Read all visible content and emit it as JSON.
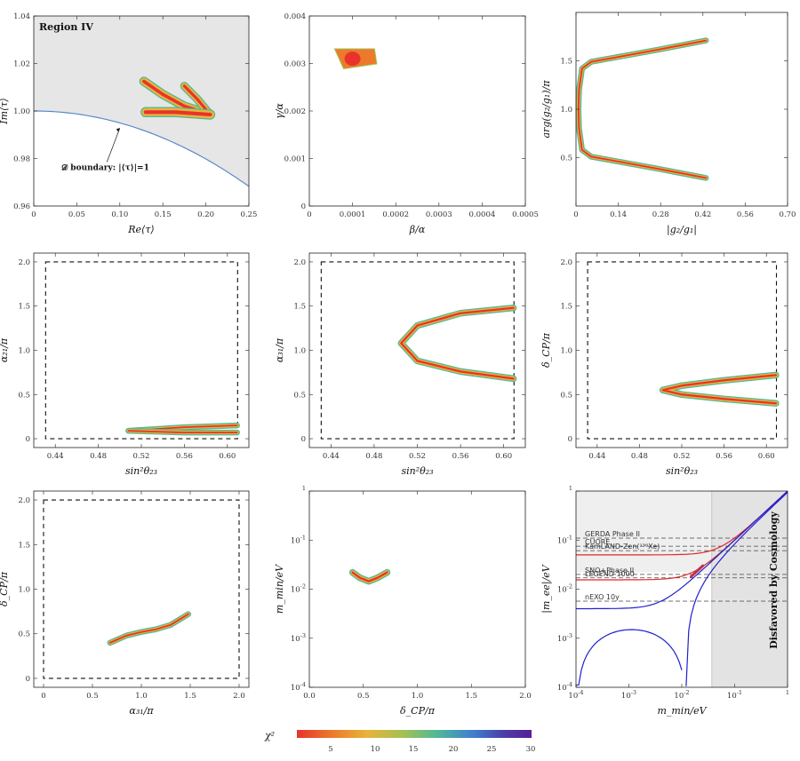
{
  "colorbar": {
    "label": "χ²",
    "ticks": [
      "5",
      "10",
      "15",
      "20",
      "25",
      "30"
    ],
    "range": [
      0,
      30
    ],
    "colors": [
      "#e8332c",
      "#ec7a2a",
      "#e8b43a",
      "#a4c152",
      "#4fb89a",
      "#3f7fd0",
      "#4a3fa8",
      "#5a1f96"
    ]
  },
  "chart_data": [
    {
      "id": "p1",
      "type": "scatter",
      "title": "Region IV",
      "xlabel": "Re⟨τ⟩",
      "ylabel": "Im⟨τ⟩",
      "xlim": [
        0,
        0.25
      ],
      "ylim": [
        0.96,
        1.04
      ],
      "xticks": [
        "0",
        "0.05",
        "0.10",
        "0.15",
        "0.20",
        "0.25"
      ],
      "yticks": [
        "0.96",
        "0.98",
        "1.00",
        "1.02",
        "1.04"
      ],
      "shaded_region": "above |τ|=1 boundary (gray)",
      "annotation": "𝒟 boundary: |⟨τ⟩|=1",
      "boundary_curve": {
        "eq": "y = sqrt(1 - x^2)",
        "x_range": [
          0,
          0.25
        ]
      },
      "region": [
        {
          "x": 0.13,
          "y": 1.0125
        },
        {
          "x": 0.16,
          "y": 1.004
        },
        {
          "x": 0.19,
          "y": 1.0
        },
        {
          "x": 0.21,
          "y": 0.998
        },
        {
          "x": 0.21,
          "y": 0.9985
        },
        {
          "x": 0.19,
          "y": 1.011
        },
        {
          "x": 0.17,
          "y": 1.0115
        }
      ],
      "lower_branch": {
        "x_range": [
          0.13,
          0.21
        ],
        "y": 0.9995
      }
    },
    {
      "id": "p2",
      "type": "scatter",
      "xlabel": "β/α",
      "ylabel": "γ/α",
      "xlim": [
        0,
        0.0005
      ],
      "ylim": [
        0,
        0.004
      ],
      "xticks": [
        "0",
        "0.0001",
        "0.0002",
        "0.0003",
        "0.0004",
        "0.0005"
      ],
      "yticks": [
        "0",
        "0.001",
        "0.002",
        "0.003",
        "0.004"
      ],
      "blob": {
        "x_range": [
          6e-05,
          0.00015
        ],
        "y_range": [
          0.0029,
          0.0033
        ]
      }
    },
    {
      "id": "p3",
      "type": "scatter",
      "xlabel": "|g₂/g₁|",
      "ylabel": "arg(g₂/g₁)/π",
      "xlim": [
        0,
        0.7
      ],
      "ylim": [
        0,
        2
      ],
      "xticks": [
        "0",
        "0.14",
        "0.28",
        "0.42",
        "0.56",
        "0.70"
      ],
      "yticks": [
        "0.5",
        "1.0",
        "1.5"
      ],
      "curve": [
        {
          "x": 0.43,
          "y": 1.71
        },
        {
          "x": 0.28,
          "y": 1.62
        },
        {
          "x": 0.14,
          "y": 1.54
        },
        {
          "x": 0.05,
          "y": 1.49
        },
        {
          "x": 0.02,
          "y": 1.42
        },
        {
          "x": 0.01,
          "y": 1.2
        },
        {
          "x": 0.008,
          "y": 1.0
        },
        {
          "x": 0.01,
          "y": 0.8
        },
        {
          "x": 0.02,
          "y": 0.58
        },
        {
          "x": 0.05,
          "y": 0.51
        },
        {
          "x": 0.14,
          "y": 0.46
        },
        {
          "x": 0.28,
          "y": 0.38
        },
        {
          "x": 0.43,
          "y": 0.29
        }
      ]
    },
    {
      "id": "p4",
      "type": "scatter",
      "xlabel": "sin²θ₂₃",
      "ylabel": "α₂₁/π",
      "xlim": [
        0.42,
        0.62
      ],
      "ylim": [
        -0.1,
        2.1
      ],
      "xticks": [
        "0.44",
        "0.48",
        "0.52",
        "0.56",
        "0.60"
      ],
      "yticks": [
        "0",
        "0.5",
        "1.0",
        "1.5",
        "2.0"
      ],
      "dashed_box": {
        "x": [
          0.431,
          0.6095
        ],
        "y": [
          0,
          2
        ]
      },
      "loop_upper": [
        {
          "x": 0.508,
          "y": 0.09
        },
        {
          "x": 0.56,
          "y": 0.13
        },
        {
          "x": 0.609,
          "y": 0.15
        }
      ],
      "loop_lower": [
        {
          "x": 0.508,
          "y": 0.09
        },
        {
          "x": 0.56,
          "y": 0.07
        },
        {
          "x": 0.609,
          "y": 0.07
        }
      ]
    },
    {
      "id": "p5",
      "type": "scatter",
      "xlabel": "sin²θ₂₃",
      "ylabel": "α₃₁/π",
      "xlim": [
        0.42,
        0.62
      ],
      "ylim": [
        -0.1,
        2.1
      ],
      "xticks": [
        "0.44",
        "0.48",
        "0.52",
        "0.56",
        "0.60"
      ],
      "yticks": [
        "0",
        "0.5",
        "1.0",
        "1.5",
        "2.0"
      ],
      "dashed_box": {
        "x": [
          0.431,
          0.6095
        ],
        "y": [
          0,
          2
        ]
      },
      "curve": [
        {
          "x": 0.609,
          "y": 1.48
        },
        {
          "x": 0.56,
          "y": 1.42
        },
        {
          "x": 0.52,
          "y": 1.28
        },
        {
          "x": 0.505,
          "y": 1.08
        },
        {
          "x": 0.52,
          "y": 0.88
        },
        {
          "x": 0.56,
          "y": 0.76
        },
        {
          "x": 0.609,
          "y": 0.68
        }
      ]
    },
    {
      "id": "p6",
      "type": "scatter",
      "xlabel": "sin²θ₂₃",
      "ylabel": "δ_CP/π",
      "xlim": [
        0.42,
        0.62
      ],
      "ylim": [
        -0.1,
        2.1
      ],
      "xticks": [
        "0.44",
        "0.48",
        "0.52",
        "0.56",
        "0.60"
      ],
      "yticks": [
        "0",
        "0.5",
        "1.0",
        "1.5",
        "2.0"
      ],
      "dashed_box": {
        "x": [
          0.431,
          0.6095
        ],
        "y": [
          0,
          2
        ]
      },
      "curve": [
        {
          "x": 0.609,
          "y": 0.72
        },
        {
          "x": 0.56,
          "y": 0.66
        },
        {
          "x": 0.52,
          "y": 0.6
        },
        {
          "x": 0.502,
          "y": 0.55
        },
        {
          "x": 0.52,
          "y": 0.5
        },
        {
          "x": 0.56,
          "y": 0.45
        },
        {
          "x": 0.609,
          "y": 0.4
        }
      ]
    },
    {
      "id": "p7",
      "type": "scatter",
      "xlabel": "α₃₁/π",
      "ylabel": "δ_CP/π",
      "xlim": [
        -0.1,
        2.1
      ],
      "ylim": [
        -0.1,
        2.1
      ],
      "xticks": [
        "0",
        "0.5",
        "1.0",
        "1.5",
        "2.0"
      ],
      "yticks": [
        "0",
        "0.5",
        "1.0",
        "1.5",
        "2.0"
      ],
      "dashed_box": {
        "x": [
          0,
          2
        ],
        "y": [
          0,
          2
        ]
      },
      "curve": [
        {
          "x": 0.68,
          "y": 0.4
        },
        {
          "x": 0.85,
          "y": 0.48
        },
        {
          "x": 1.0,
          "y": 0.52
        },
        {
          "x": 1.15,
          "y": 0.55
        },
        {
          "x": 1.3,
          "y": 0.6
        },
        {
          "x": 1.48,
          "y": 0.72
        }
      ]
    },
    {
      "id": "p8",
      "type": "scatter",
      "xlabel": "δ_CP/π",
      "ylabel": "m_min/eV",
      "xlim": [
        0,
        2
      ],
      "ylim_log10": [
        -4,
        0
      ],
      "xticks": [
        "0.0",
        "0.5",
        "1.0",
        "1.5",
        "2.0"
      ],
      "yticks": [
        {
          "base": "10",
          "exp": "-4"
        },
        {
          "base": "10",
          "exp": "-3"
        },
        {
          "base": "10",
          "exp": "-2"
        },
        {
          "base": "10",
          "exp": "-1"
        },
        {
          "base": "",
          "exp": "1"
        }
      ],
      "curve": [
        {
          "x": 0.4,
          "y": 0.022
        },
        {
          "x": 0.47,
          "y": 0.017
        },
        {
          "x": 0.55,
          "y": 0.0145
        },
        {
          "x": 0.63,
          "y": 0.017
        },
        {
          "x": 0.72,
          "y": 0.022
        }
      ]
    },
    {
      "id": "p9",
      "type": "line",
      "xlabel": "m_min/eV",
      "ylabel": "|m_ee|/eV",
      "xlim_log10": [
        -4,
        0
      ],
      "ylim_log10": [
        -4,
        0
      ],
      "xticks": [
        {
          "base": "10",
          "exp": "-4"
        },
        {
          "base": "10",
          "exp": "-3"
        },
        {
          "base": "10",
          "exp": "-2"
        },
        {
          "base": "10",
          "exp": "-1"
        },
        {
          "base": "",
          "exp": "1"
        }
      ],
      "yticks": [
        {
          "base": "10",
          "exp": "-4"
        },
        {
          "base": "10",
          "exp": "-3"
        },
        {
          "base": "10",
          "exp": "-2"
        },
        {
          "base": "10",
          "exp": "-1"
        },
        {
          "base": "",
          "exp": "1"
        }
      ],
      "disfavored_label": "Disfavored by Cosmology",
      "disfavored_from": 0.037,
      "experiments": [
        {
          "name": "GERDA Phase II",
          "value": 0.11,
          "style": "dashed"
        },
        {
          "name": "CUORE",
          "value": 0.075,
          "style": "dashed"
        },
        {
          "name": "KamLAND-Zen(¹³⁶Xe)",
          "value": 0.061,
          "style": "dashed"
        },
        {
          "name": "SNO+Phase II",
          "value": 0.02,
          "style": "dashed"
        },
        {
          "name": "LEGEND 1000",
          "value": 0.017,
          "style": "dashed"
        },
        {
          "name": "nEXO 10y",
          "value": 0.0057,
          "style": "dashed"
        }
      ],
      "io_band": {
        "lower": 0.0155,
        "upper": 0.05,
        "color": "#e02828"
      },
      "no_band": {
        "color": "#2020d0",
        "plateau": 0.004,
        "dip_at": 0.012
      },
      "points": {
        "x_range": [
          0.015,
          0.025
        ],
        "y_range": [
          0.018,
          0.03
        ]
      }
    }
  ]
}
